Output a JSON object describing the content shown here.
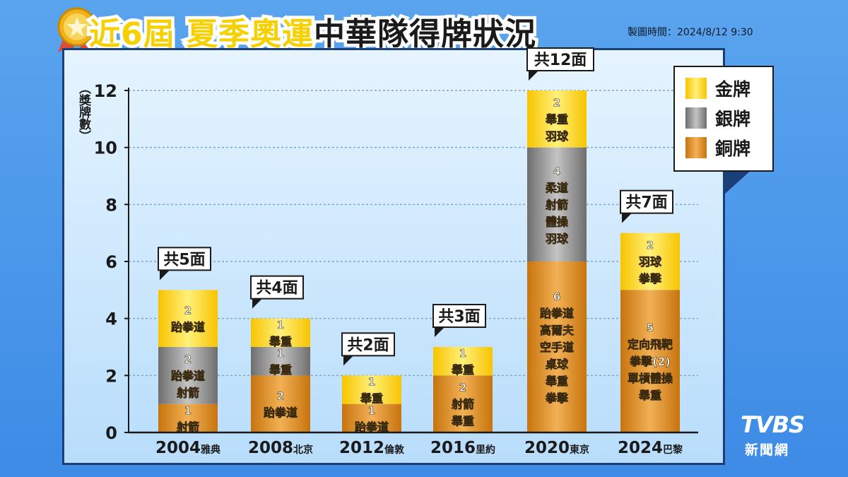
{
  "header": {
    "title_part1": "近6屆",
    "title_part2": "夏季奧運",
    "title_part3": "中華隊得牌狀況",
    "timestamp": "製圖時間：2024/8/12  9:30"
  },
  "logo": {
    "main": "TVBS",
    "sub": "新聞網"
  },
  "colors": {
    "gold": "#f8cc10",
    "silver": "#8a8a8a",
    "bronze": "#d98a20",
    "gridline": "#7da6cf",
    "panel_border": "#1b3f78"
  },
  "chart_data": {
    "type": "bar",
    "stacked": true,
    "title": "近6屆 夏季奧運 中華隊得牌狀況",
    "xlabel": "",
    "ylabel": "（獎牌數）",
    "ylim": [
      0,
      12
    ],
    "yticks": [
      0,
      2,
      4,
      6,
      8,
      10,
      12
    ],
    "grid": true,
    "legend_position": "top-right",
    "categories": [
      {
        "year": "2004",
        "city": "雅典"
      },
      {
        "year": "2008",
        "city": "北京"
      },
      {
        "year": "2012",
        "city": "倫敦"
      },
      {
        "year": "2016",
        "city": "里約"
      },
      {
        "year": "2020",
        "city": "東京"
      },
      {
        "year": "2024",
        "city": "巴黎"
      }
    ],
    "totals_labels": [
      "共5面",
      "共4面",
      "共2面",
      "共3面",
      "共12面",
      "共7面"
    ],
    "series": [
      {
        "name": "銅牌",
        "key": "bronze",
        "values": [
          1,
          2,
          1,
          2,
          6,
          5
        ],
        "labels": [
          [
            "1",
            "射箭"
          ],
          [
            "2",
            "跆拳道"
          ],
          [
            "1",
            "跆拳道"
          ],
          [
            "2",
            "射箭",
            "舉重"
          ],
          [
            "6",
            "跆拳道",
            "高爾夫",
            "空手道",
            "桌球",
            "舉重",
            "拳擊"
          ],
          [
            "5",
            "定向飛靶",
            "拳擊(2)",
            "單槓體操",
            "舉重"
          ]
        ]
      },
      {
        "name": "銀牌",
        "key": "silver",
        "values": [
          2,
          1,
          0,
          0,
          4,
          0
        ],
        "labels": [
          [
            "2",
            "跆拳道",
            "射箭"
          ],
          [
            "1",
            "舉重"
          ],
          [],
          [],
          [
            "4",
            "柔道",
            "射箭",
            "體操",
            "羽球"
          ],
          []
        ]
      },
      {
        "name": "金牌",
        "key": "gold",
        "values": [
          2,
          1,
          1,
          1,
          2,
          2
        ],
        "labels": [
          [
            "2",
            "跆拳道"
          ],
          [
            "1",
            "舉重"
          ],
          [
            "1",
            "舉重"
          ],
          [
            "1",
            "舉重"
          ],
          [
            "2",
            "舉重",
            "羽球"
          ],
          [
            "2",
            "羽球",
            "拳擊"
          ]
        ]
      }
    ]
  }
}
